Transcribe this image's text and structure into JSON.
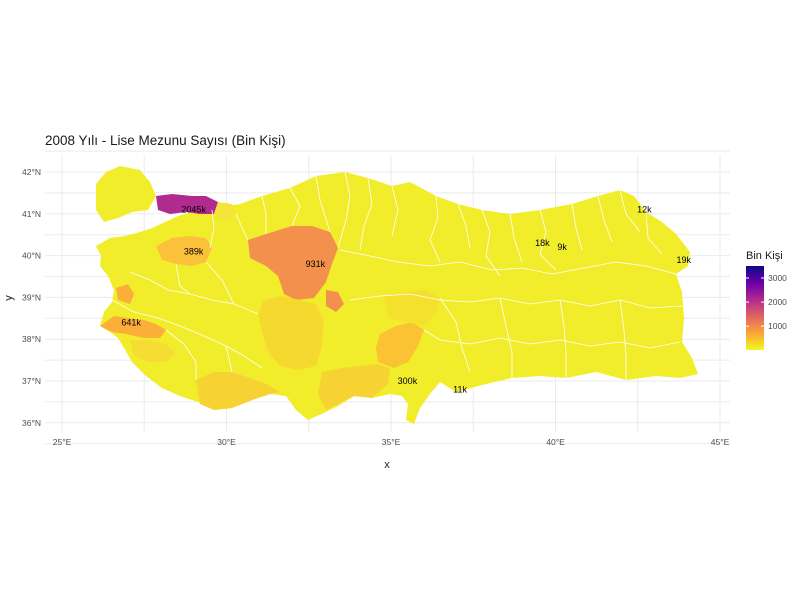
{
  "title": "2008 Yılı - Lise Mezunu Sayısı (Bin Kişi)",
  "x_axis": {
    "label": "x",
    "ticks": [
      {
        "lon": 25,
        "label": "25°E"
      },
      {
        "lon": 30,
        "label": "30°E"
      },
      {
        "lon": 35,
        "label": "35°E"
      },
      {
        "lon": 40,
        "label": "40°E"
      },
      {
        "lon": 45,
        "label": "45°E"
      }
    ]
  },
  "y_axis": {
    "label": "y",
    "ticks": [
      {
        "lat": 42,
        "label": "42°N"
      },
      {
        "lat": 41,
        "label": "41°N"
      },
      {
        "lat": 40,
        "label": "40°N"
      },
      {
        "lat": 39,
        "label": "39°N"
      },
      {
        "lat": 38,
        "label": "38°N"
      },
      {
        "lat": 37,
        "label": "37°N"
      },
      {
        "lat": 36,
        "label": "36°N"
      }
    ]
  },
  "legend": {
    "title": "Bin Kişi",
    "min": 9,
    "max": 3500,
    "ticks": [
      {
        "value": 3000,
        "label": "3000"
      },
      {
        "value": 2000,
        "label": "2000"
      },
      {
        "value": 1000,
        "label": "1000"
      }
    ],
    "colors": [
      "#f0f921",
      "#fca636",
      "#e16462",
      "#b12a90",
      "#6a00a8",
      "#0d0887"
    ]
  },
  "regions": [
    {
      "label": "2045k",
      "value": 2045,
      "lon": 29.0,
      "lat": 41.1
    },
    {
      "label": "931k",
      "value": 931,
      "lon": 32.7,
      "lat": 39.8
    },
    {
      "label": "641k",
      "value": 641,
      "lon": 27.1,
      "lat": 38.4
    },
    {
      "label": "389k",
      "value": 389,
      "lon": 29.0,
      "lat": 40.1
    },
    {
      "label": "300k",
      "value": 300,
      "lon": 35.5,
      "lat": 37.0
    },
    {
      "label": "18k",
      "value": 18,
      "lon": 39.6,
      "lat": 40.3
    },
    {
      "label": "12k",
      "value": 12,
      "lon": 42.7,
      "lat": 41.1
    },
    {
      "label": "9k",
      "value": 9,
      "lon": 40.2,
      "lat": 40.2
    },
    {
      "label": "19k",
      "value": 19,
      "lon": 43.9,
      "lat": 39.9
    },
    {
      "label": "11k",
      "value": 11,
      "lon": 37.1,
      "lat": 36.8
    }
  ]
}
